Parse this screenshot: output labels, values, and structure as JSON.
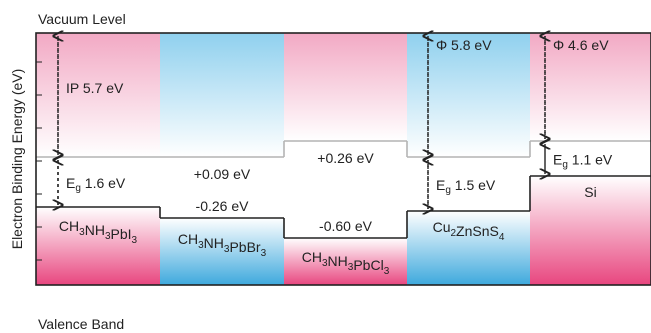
{
  "top_label": "Vacuum Level",
  "bottom_label": "Valence Band",
  "y_axis_label": "Electron Binding Energy (eV)",
  "colors": {
    "pink": "#e8467f",
    "blue": "#3ea9dd",
    "conduction_line": "#b4b4b4",
    "valence_line": "#222222",
    "frame": "#222222"
  },
  "materials": [
    {
      "name_base": "CH",
      "sub1": "3",
      "name_mid": "NH",
      "sub2": "3",
      "name_tail": "PbI",
      "sub3": "3",
      "name_end": "",
      "color_scheme": "pink",
      "ip_text": "IP 5.7 eV",
      "gap_prefix": "E",
      "gap_suffix": "g",
      "gap_value": "1.6 eV",
      "offset_above": "",
      "offset_below": ""
    },
    {
      "name_base": "CH",
      "sub1": "3",
      "name_mid": "NH",
      "sub2": "3",
      "name_tail": "PbBr",
      "sub3": "3",
      "name_end": "",
      "color_scheme": "blue",
      "ip_text": "",
      "gap_prefix": "",
      "gap_suffix": "",
      "gap_value": "",
      "offset_above": "+0.09 eV",
      "offset_below": "-0.26 eV"
    },
    {
      "name_base": "CH",
      "sub1": "3",
      "name_mid": "NH",
      "sub2": "3",
      "name_tail": "PbCl",
      "sub3": "3",
      "name_end": "",
      "color_scheme": "pink",
      "ip_text": "",
      "gap_prefix": "",
      "gap_suffix": "",
      "gap_value": "",
      "offset_above": "+0.26 eV",
      "offset_below": "-0.60 eV"
    },
    {
      "name_base": "Cu",
      "sub1": "2",
      "name_mid": "ZnSnS",
      "sub2": "4",
      "name_tail": "",
      "sub3": "",
      "name_end": "",
      "color_scheme": "blue",
      "ip_text": "Φ 5.8 eV",
      "gap_prefix": "E",
      "gap_suffix": "g",
      "gap_value": "1.5 eV",
      "offset_above": "",
      "offset_below": ""
    },
    {
      "name_base": "Si",
      "sub1": "",
      "name_mid": "",
      "sub2": "",
      "name_tail": "",
      "sub3": "",
      "name_end": "",
      "color_scheme": "pink",
      "ip_text": "Φ 4.6 eV",
      "gap_prefix": "E",
      "gap_suffix": "g",
      "gap_value": "1.1 eV",
      "offset_above": "",
      "offset_below": ""
    }
  ]
}
